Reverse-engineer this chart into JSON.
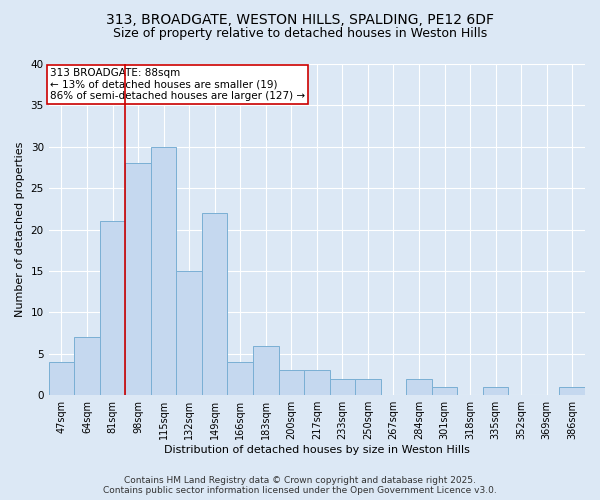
{
  "title_line1": "313, BROADGATE, WESTON HILLS, SPALDING, PE12 6DF",
  "title_line2": "Size of property relative to detached houses in Weston Hills",
  "xlabel": "Distribution of detached houses by size in Weston Hills",
  "ylabel": "Number of detached properties",
  "categories": [
    "47sqm",
    "64sqm",
    "81sqm",
    "98sqm",
    "115sqm",
    "132sqm",
    "149sqm",
    "166sqm",
    "183sqm",
    "200sqm",
    "217sqm",
    "233sqm",
    "250sqm",
    "267sqm",
    "284sqm",
    "301sqm",
    "318sqm",
    "335sqm",
    "352sqm",
    "369sqm",
    "386sqm"
  ],
  "values": [
    4,
    7,
    21,
    28,
    30,
    15,
    22,
    4,
    6,
    3,
    3,
    2,
    2,
    0,
    2,
    1,
    0,
    1,
    0,
    0,
    1
  ],
  "bar_color": "#c5d8ef",
  "bar_edge_color": "#7aafd4",
  "vline_color": "#cc0000",
  "vline_x": 2.5,
  "annotation_text": "313 BROADGATE: 88sqm\n← 13% of detached houses are smaller (19)\n86% of semi-detached houses are larger (127) →",
  "annotation_box_edgecolor": "#cc0000",
  "annotation_box_facecolor": "#ffffff",
  "ylim": [
    0,
    40
  ],
  "yticks": [
    0,
    5,
    10,
    15,
    20,
    25,
    30,
    35,
    40
  ],
  "footer_text": "Contains HM Land Registry data © Crown copyright and database right 2025.\nContains public sector information licensed under the Open Government Licence v3.0.",
  "background_color": "#dce8f5",
  "plot_background_color": "#dce8f5",
  "grid_color": "#ffffff",
  "title_fontsize": 10,
  "subtitle_fontsize": 9,
  "axis_label_fontsize": 8,
  "tick_fontsize": 7,
  "annotation_fontsize": 7.5,
  "footer_fontsize": 6.5
}
